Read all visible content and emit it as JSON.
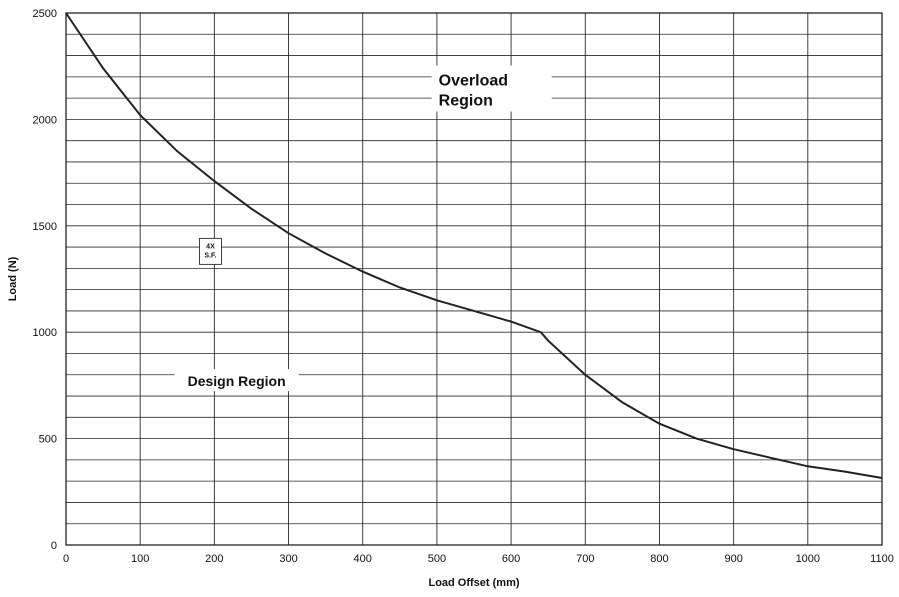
{
  "chart_data": {
    "type": "line",
    "title": "",
    "xlabel": "Load Offset (mm)",
    "ylabel": "Load (N)",
    "xlim": [
      0,
      1100
    ],
    "ylim": [
      0,
      2500
    ],
    "x_ticks": [
      "0",
      "100",
      "200",
      "300",
      "400",
      "500",
      "600",
      "700",
      "800",
      "900",
      "1000",
      "1100"
    ],
    "y_ticks": [
      "0",
      "500",
      "1000",
      "1500",
      "2000",
      "2500"
    ],
    "grid": true,
    "series": [
      {
        "x": [
          0,
          50,
          100,
          150,
          200,
          250,
          300,
          350,
          400,
          450,
          500,
          550,
          600,
          640,
          650,
          700,
          750,
          800,
          850,
          900,
          950,
          1000,
          1050,
          1100
        ],
        "y": [
          2500,
          2240,
          2020,
          1850,
          1710,
          1580,
          1465,
          1370,
          1285,
          1210,
          1150,
          1100,
          1050,
          1000,
          960,
          800,
          670,
          570,
          500,
          450,
          410,
          370,
          345,
          315
        ]
      }
    ],
    "annotations": [
      {
        "id": "overload",
        "lines": [
          "Overload",
          "Region"
        ],
        "x": 590,
        "y": 2150
      },
      {
        "id": "design",
        "lines": [
          "Design Region"
        ],
        "x": 230,
        "y": 770
      },
      {
        "id": "sf",
        "lines": [
          "4X",
          "S.F."
        ],
        "x": 188,
        "y": 1380
      }
    ],
    "colors": {
      "line": "#222222",
      "grid": "#2a2a2a",
      "background": "#ffffff"
    }
  }
}
